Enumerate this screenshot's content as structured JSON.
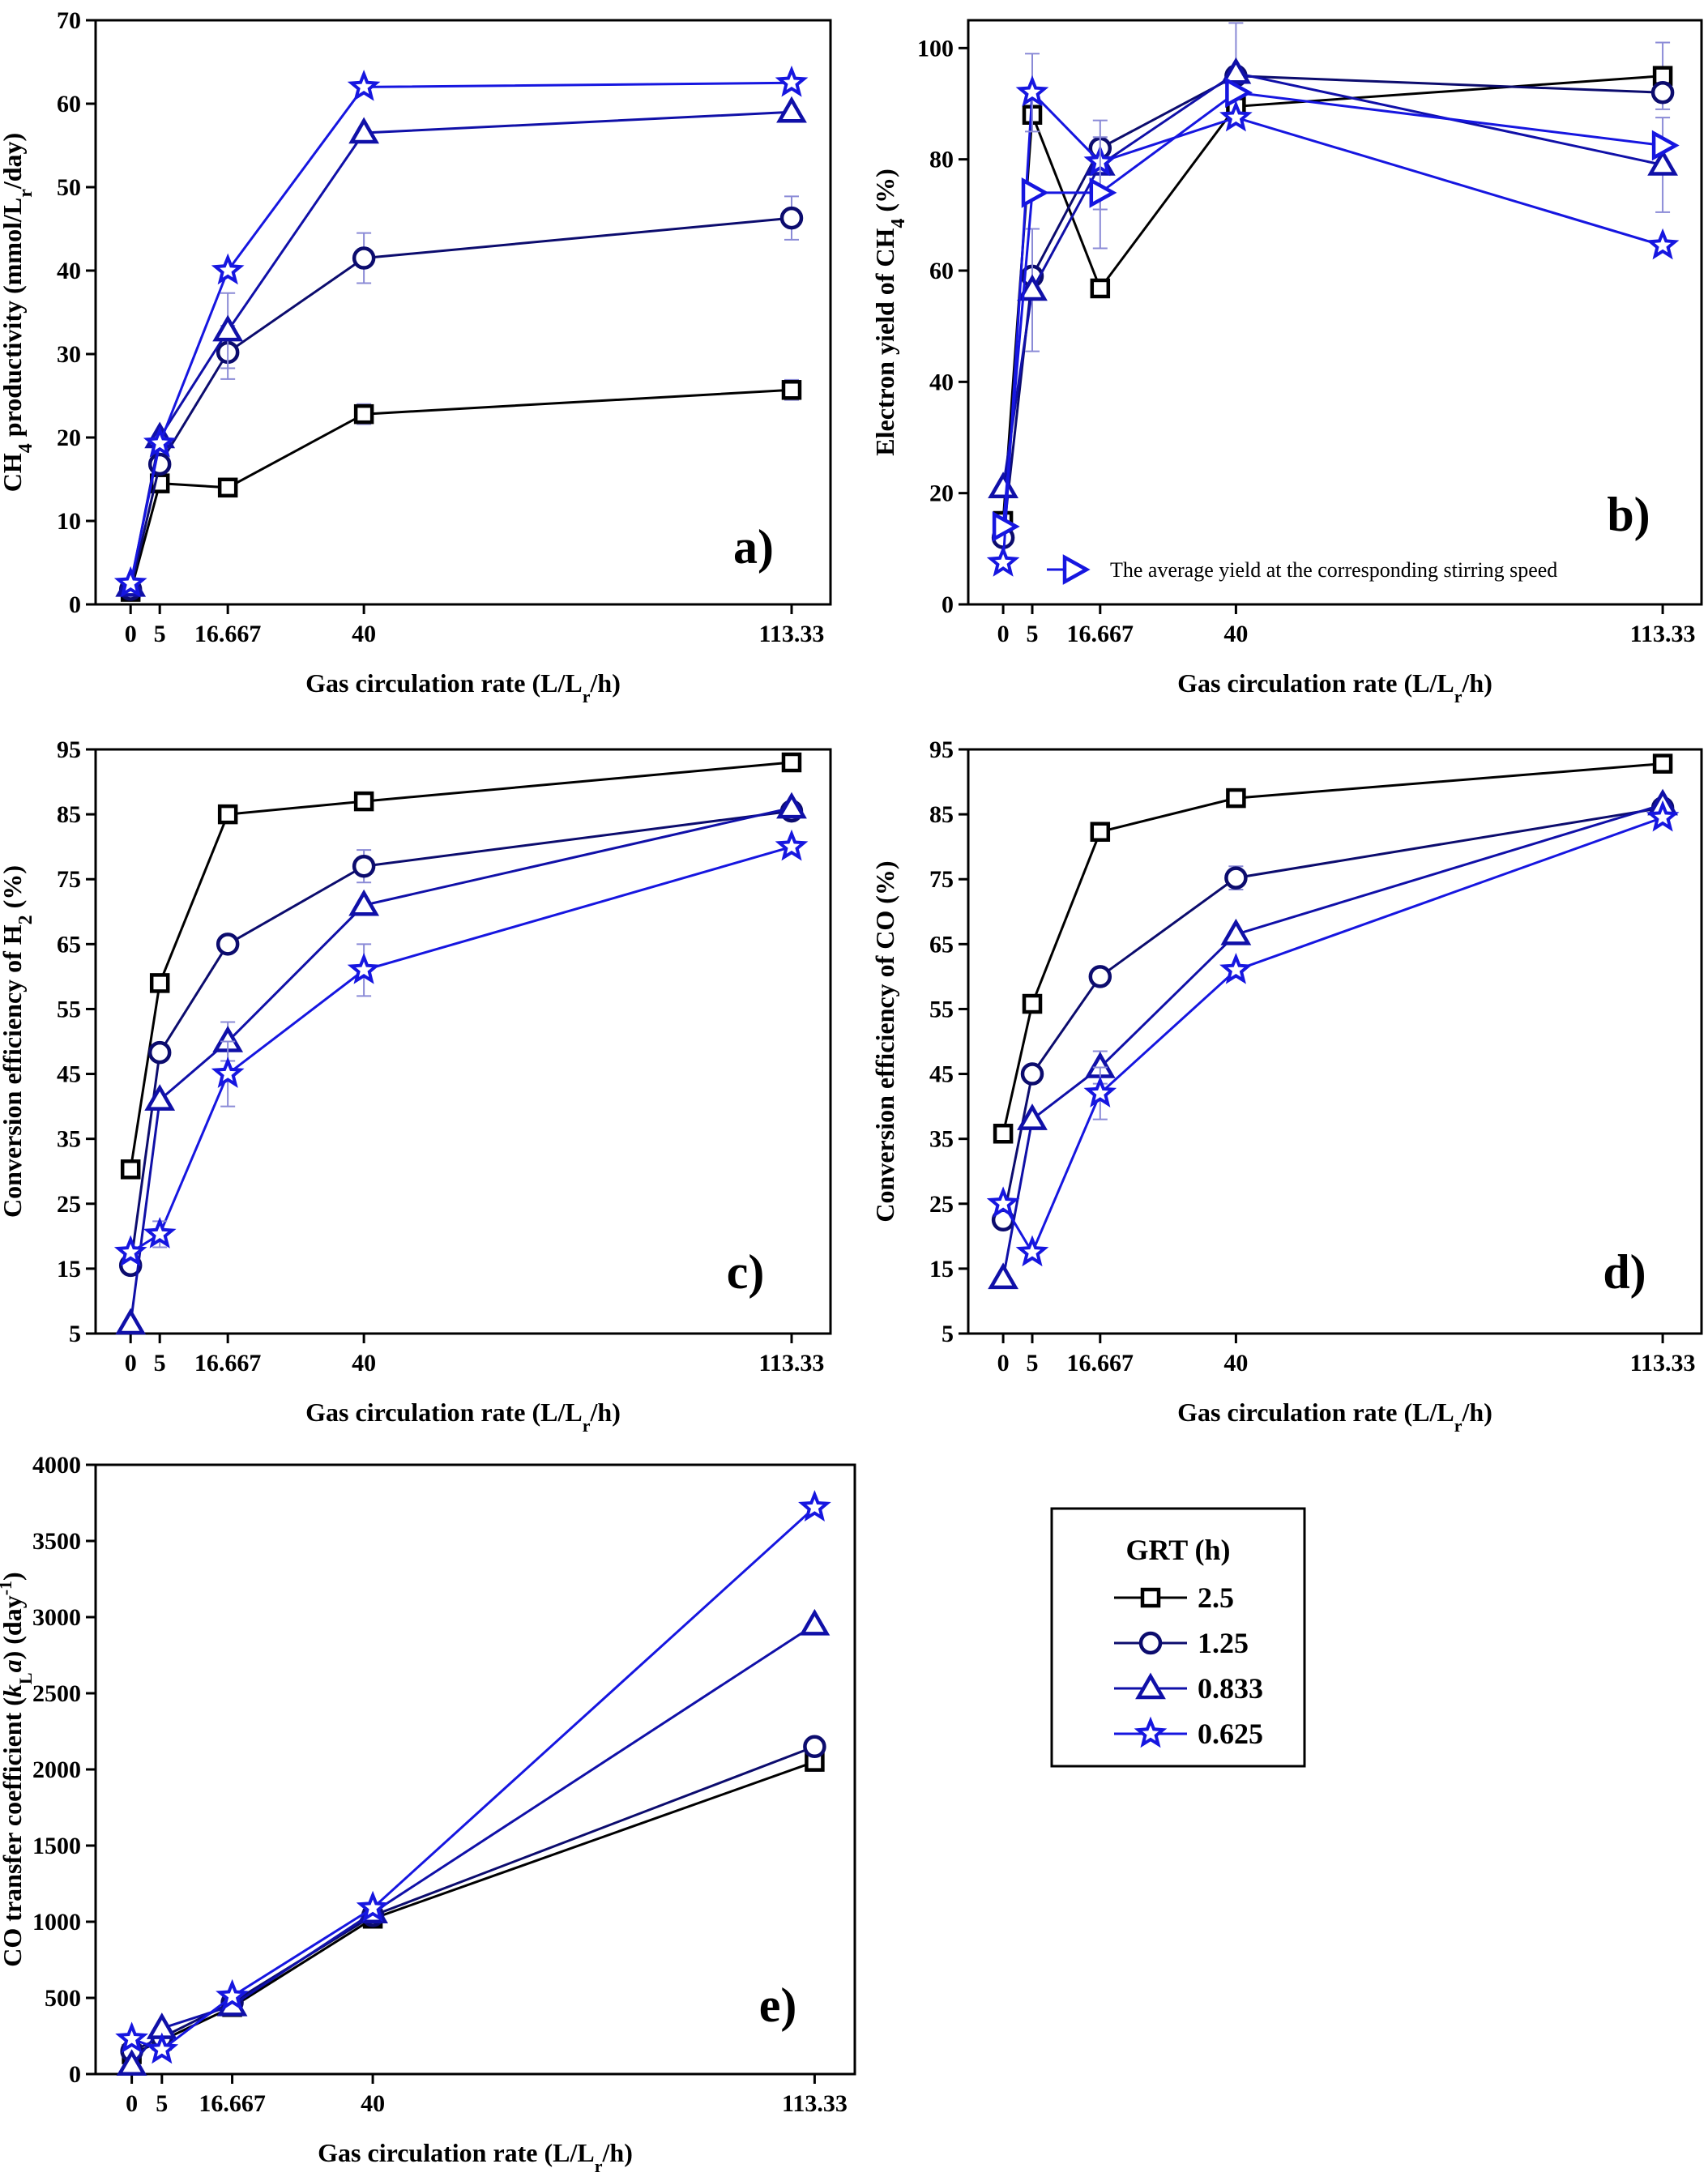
{
  "colors": {
    "s0": "#000000",
    "s1": "#0c0c6e",
    "s2": "#1010a8",
    "s3": "#1616e0",
    "err": "#8a8ad6"
  },
  "chart_data": [
    {
      "id": "a",
      "type": "line",
      "panel_label": "a)",
      "xlabel": "Gas circulation rate (L/Lr/h)",
      "xlabel_main": "Gas circulation rate (L/L",
      "xlabel_sub": "r",
      "xlabel_tail": "/h)",
      "ylabel": "CH4 productivity (mmol/Lr/day)",
      "x": [
        0,
        5,
        16.667,
        40,
        113.33
      ],
      "x_tick_labels": [
        "0",
        "5",
        "16.667",
        "40",
        "113.33"
      ],
      "xlim": [
        -6,
        120
      ],
      "ylim": [
        0,
        70
      ],
      "y_ticks": [
        0,
        10,
        20,
        30,
        40,
        50,
        60,
        70
      ],
      "series": [
        {
          "name": "2.5",
          "marker": "square",
          "values": [
            1.5,
            14.5,
            14,
            22.8,
            25.7
          ],
          "err": [
            0,
            0,
            0,
            1.2,
            1.2
          ]
        },
        {
          "name": "1.25",
          "marker": "circle",
          "values": [
            1.8,
            16.8,
            30.2,
            41.5,
            46.3
          ],
          "err": [
            0,
            0,
            3.2,
            3.0,
            2.6
          ]
        },
        {
          "name": "0.833",
          "marker": "triangle",
          "values": [
            2.2,
            20,
            32.8,
            56.5,
            59
          ],
          "err": [
            0,
            0,
            4.5,
            0,
            0
          ]
        },
        {
          "name": "0.625",
          "marker": "star",
          "values": [
            2.5,
            19.3,
            40,
            62,
            62.5
          ],
          "err": [
            0,
            0,
            0,
            0,
            0
          ]
        }
      ]
    },
    {
      "id": "b",
      "type": "line",
      "panel_label": "b)",
      "xlabel": "Gas circulation rate (L/Lr/h)",
      "xlabel_main": "Gas circulation rate (L/L",
      "xlabel_sub": "r",
      "xlabel_tail": "/h)",
      "ylabel": "Electron yield of CH4 (%)",
      "x": [
        0,
        5,
        16.667,
        40,
        113.33
      ],
      "x_tick_labels": [
        "0",
        "5",
        "16.667",
        "40",
        "113.33"
      ],
      "xlim": [
        -6,
        120
      ],
      "ylim": [
        0,
        105
      ],
      "y_ticks": [
        0,
        20,
        40,
        60,
        80,
        100
      ],
      "annotation": "The average yield at the corresponding stirring speed",
      "series": [
        {
          "name": "2.5",
          "marker": "square",
          "values": [
            15,
            88,
            56.8,
            89.5,
            95
          ],
          "err": [
            0,
            0,
            0,
            0,
            6
          ]
        },
        {
          "name": "1.25",
          "marker": "circle",
          "values": [
            12,
            59,
            82,
            95,
            92
          ],
          "err": [
            0,
            0,
            0,
            0,
            0
          ]
        },
        {
          "name": "0.833",
          "marker": "triangle",
          "values": [
            21,
            56.5,
            79,
            95.5,
            79
          ],
          "err": [
            0,
            11,
            8,
            9,
            8.5
          ]
        },
        {
          "name": "0.625",
          "marker": "star",
          "values": [
            7.5,
            92,
            79.5,
            87.5,
            64.5
          ],
          "err": [
            0,
            7,
            0,
            0,
            0
          ]
        },
        {
          "name": "average",
          "marker": "rtriangle",
          "values": [
            14,
            74,
            74,
            92,
            82.5
          ],
          "err": [
            0,
            0,
            10,
            0,
            0
          ]
        }
      ]
    },
    {
      "id": "c",
      "type": "line",
      "panel_label": "c)",
      "xlabel": "Gas circulation rate (L/Lr/h)",
      "xlabel_main": "Gas circulation rate (L/L",
      "xlabel_sub": "r",
      "xlabel_tail": "/h)",
      "ylabel": "Conversion efficiency of H2 (%)",
      "x": [
        0,
        5,
        16.667,
        40,
        113.33
      ],
      "x_tick_labels": [
        "0",
        "5",
        "16.667",
        "40",
        "113.33"
      ],
      "xlim": [
        -6,
        120
      ],
      "ylim": [
        5,
        95
      ],
      "y_ticks": [
        5,
        15,
        25,
        35,
        45,
        55,
        65,
        75,
        85,
        95
      ],
      "series": [
        {
          "name": "2.5",
          "marker": "square",
          "values": [
            30.3,
            59,
            85,
            87,
            93
          ],
          "err": [
            0,
            0,
            0,
            0,
            0
          ]
        },
        {
          "name": "1.25",
          "marker": "circle",
          "values": [
            15.5,
            48.3,
            65,
            77,
            85.5
          ],
          "err": [
            0,
            0,
            0,
            2.5,
            0
          ]
        },
        {
          "name": "0.833",
          "marker": "triangle",
          "values": [
            6.5,
            41,
            50,
            71,
            86
          ],
          "err": [
            0,
            0,
            3,
            0,
            0
          ]
        },
        {
          "name": "0.625",
          "marker": "star",
          "values": [
            17.5,
            20.3,
            45,
            61,
            80
          ],
          "err": [
            0,
            2,
            5,
            4,
            0
          ]
        }
      ]
    },
    {
      "id": "d",
      "type": "line",
      "panel_label": "d)",
      "xlabel": "Gas circulation rate (L/Lr/h)",
      "xlabel_main": "Gas circulation rate (L/L",
      "xlabel_sub": "r",
      "xlabel_tail": "/h)",
      "ylabel": "Conversion efficiency of CO (%)",
      "x": [
        0,
        5,
        16.667,
        40,
        113.33
      ],
      "x_tick_labels": [
        "0",
        "5",
        "16.667",
        "40",
        "113.33"
      ],
      "xlim": [
        -6,
        120
      ],
      "ylim": [
        5,
        95
      ],
      "y_ticks": [
        5,
        15,
        25,
        35,
        45,
        55,
        65,
        75,
        85,
        95
      ],
      "series": [
        {
          "name": "2.5",
          "marker": "square",
          "values": [
            35.8,
            55.8,
            82.3,
            87.5,
            92.8
          ],
          "err": [
            0,
            0,
            0,
            0,
            0
          ]
        },
        {
          "name": "1.25",
          "marker": "circle",
          "values": [
            22.5,
            45,
            60,
            75.2,
            86
          ],
          "err": [
            0,
            0,
            0,
            1.8,
            0
          ]
        },
        {
          "name": "0.833",
          "marker": "triangle",
          "values": [
            13.5,
            38,
            46,
            66.5,
            86.5
          ],
          "err": [
            0,
            0,
            2.5,
            0,
            0
          ]
        },
        {
          "name": "0.625",
          "marker": "star",
          "values": [
            25,
            17.5,
            42,
            61,
            84.5
          ],
          "err": [
            0,
            0,
            4,
            0,
            0
          ]
        }
      ]
    },
    {
      "id": "e",
      "type": "line",
      "panel_label": "e)",
      "xlabel": "Gas circulation rate (L/Lr/h)",
      "xlabel_main": "Gas circulation rate (L/L",
      "xlabel_sub": "r",
      "xlabel_tail": "/h)",
      "ylabel": "CO transfer coefficient (kLa) (day-1)",
      "x": [
        0,
        5,
        16.667,
        40,
        113.33
      ],
      "x_tick_labels": [
        "0",
        "5",
        "16.667",
        "40",
        "113.33"
      ],
      "xlim": [
        -6,
        120
      ],
      "ylim": [
        0,
        4000
      ],
      "y_ticks": [
        0,
        500,
        1000,
        1500,
        2000,
        2500,
        3000,
        3500,
        4000
      ],
      "series": [
        {
          "name": "2.5",
          "marker": "square",
          "values": [
            130,
            220,
            440,
            1020,
            2050
          ],
          "err": [
            0,
            0,
            0,
            0,
            60
          ]
        },
        {
          "name": "1.25",
          "marker": "circle",
          "values": [
            150,
            240,
            470,
            1040,
            2150
          ],
          "err": [
            0,
            0,
            0,
            0,
            0
          ]
        },
        {
          "name": "0.833",
          "marker": "triangle",
          "values": [
            60,
            300,
            450,
            1060,
            2950
          ],
          "err": [
            0,
            0,
            0,
            0,
            0
          ]
        },
        {
          "name": "0.625",
          "marker": "star",
          "values": [
            230,
            160,
            510,
            1090,
            3720
          ],
          "err": [
            0,
            0,
            0,
            0,
            0
          ]
        }
      ]
    }
  ],
  "legend": {
    "title": "GRT (h)",
    "entries": [
      {
        "label": "2.5",
        "marker": "square"
      },
      {
        "label": "1.25",
        "marker": "circle"
      },
      {
        "label": "0.833",
        "marker": "triangle"
      },
      {
        "label": "0.625",
        "marker": "star"
      }
    ]
  }
}
